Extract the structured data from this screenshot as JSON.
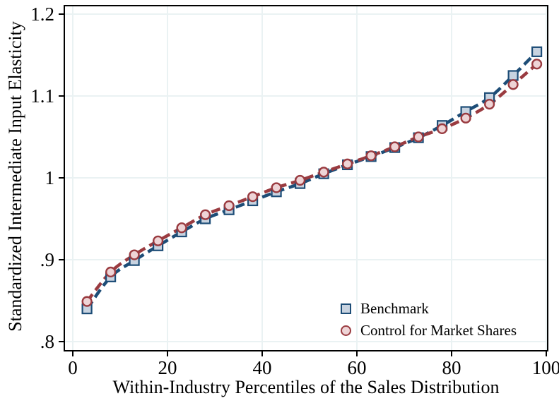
{
  "chart_data": {
    "type": "scatter",
    "title": "",
    "xlabel": "Within-Industry Percentiles of the Sales Distribution",
    "ylabel": "Standardized Intermediate Input Elasticity",
    "xlim": [
      0,
      100
    ],
    "ylim": [
      0.8,
      1.2
    ],
    "x_tick_values": [
      0,
      20,
      40,
      60,
      80,
      100
    ],
    "x_tick_labels": [
      "0",
      "20",
      "40",
      "60",
      "80",
      "100"
    ],
    "y_tick_values": [
      0.8,
      0.9,
      1.0,
      1.1,
      1.2
    ],
    "y_tick_labels": [
      ".8",
      ".9",
      "1",
      "1.1",
      "1.2"
    ],
    "grid": true,
    "legend_position": "inside-bottom-right",
    "x": [
      3,
      8,
      13,
      18,
      23,
      28,
      33,
      38,
      43,
      48,
      53,
      58,
      63,
      68,
      73,
      78,
      83,
      88,
      93,
      98
    ],
    "series": [
      {
        "name": "Benchmark",
        "marker": "square",
        "line_style": "dashed",
        "color": "#1d4d77",
        "fill": "#c8d3e0",
        "values": [
          0.84,
          0.879,
          0.899,
          0.917,
          0.934,
          0.95,
          0.961,
          0.972,
          0.983,
          0.993,
          1.005,
          1.016,
          1.026,
          1.037,
          1.049,
          1.064,
          1.081,
          1.098,
          1.125,
          1.154
        ]
      },
      {
        "name": "Control for Market Shares",
        "marker": "circle",
        "line_style": "dashed",
        "color": "#9a3b40",
        "fill": "#eed4d6",
        "values": [
          0.849,
          0.885,
          0.906,
          0.923,
          0.939,
          0.955,
          0.966,
          0.977,
          0.988,
          0.997,
          1.007,
          1.017,
          1.027,
          1.038,
          1.05,
          1.06,
          1.073,
          1.09,
          1.114,
          1.139
        ]
      }
    ],
    "colors": {
      "grid": "#eaf2f3",
      "axis": "#000000",
      "background": "#ffffff"
    }
  }
}
